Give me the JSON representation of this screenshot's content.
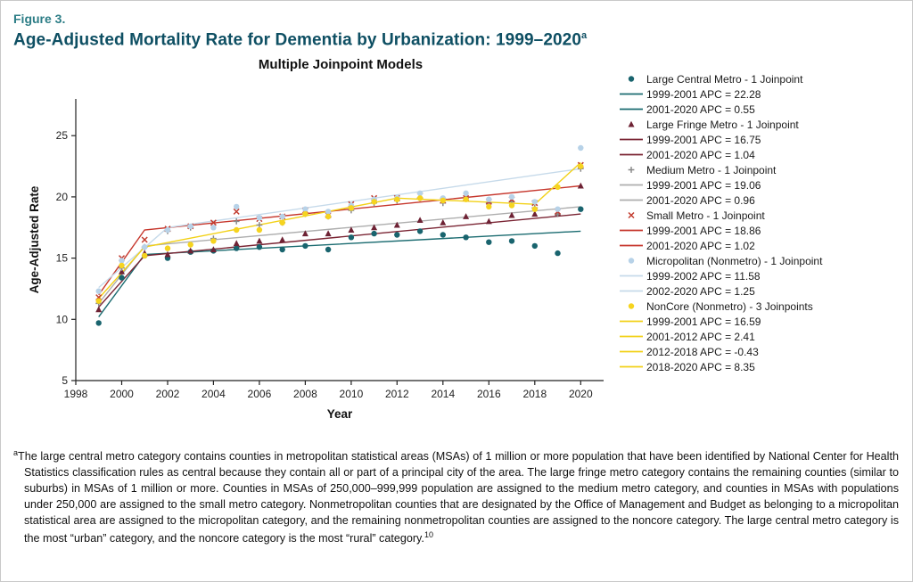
{
  "header": {
    "figure_label": "Figure 3.",
    "title": "Age-Adjusted Mortality Rate for Dementia by Urbanization: 1999–2020",
    "title_superscript": "a"
  },
  "chart_data": {
    "type": "scatter",
    "title": "Multiple Joinpoint Models",
    "xlabel": "Year",
    "ylabel": "Age-Adjusted Rate",
    "xlim": [
      1998,
      2021
    ],
    "ylim": [
      5,
      28
    ],
    "xticks": [
      1998,
      2000,
      2002,
      2004,
      2006,
      2008,
      2010,
      2012,
      2014,
      2016,
      2018,
      2020
    ],
    "yticks": [
      5,
      10,
      15,
      20,
      25
    ],
    "grid": false,
    "legend_position": "right",
    "years": [
      1999,
      2000,
      2001,
      2002,
      2003,
      2004,
      2005,
      2006,
      2007,
      2008,
      2009,
      2010,
      2011,
      2012,
      2013,
      2014,
      2015,
      2016,
      2017,
      2018,
      2019,
      2020
    ],
    "series": [
      {
        "name": "Large Central Metro - 1 Joinpoint",
        "marker": "circle",
        "icon_name": "large-central-metro-circle-icon",
        "color": "#19646e",
        "line_color": "#1a6b70",
        "apc_labels": [
          "1999-2001 APC = 22.28",
          "2001-2020 APC = 0.55"
        ],
        "values": [
          9.7,
          13.4,
          15.2,
          15.0,
          15.5,
          15.6,
          15.8,
          15.9,
          15.7,
          16.0,
          15.7,
          16.7,
          17.0,
          16.9,
          17.2,
          16.9,
          16.7,
          16.3,
          16.4,
          16.0,
          15.4,
          19.0
        ],
        "joinpoint_line": [
          [
            1999,
            10.2
          ],
          [
            2001,
            15.3
          ],
          [
            2020,
            17.2
          ]
        ]
      },
      {
        "name": "Large Fringe Metro - 1 Joinpoint",
        "marker": "triangle",
        "icon_name": "large-fringe-metro-triangle-icon",
        "color": "#6e2234",
        "line_color": "#7a2433",
        "apc_labels": [
          "1999-2001 APC = 16.75",
          "2001-2020 APC = 1.04"
        ],
        "values": [
          10.8,
          13.9,
          15.4,
          15.3,
          15.6,
          15.7,
          16.2,
          16.4,
          16.5,
          17.0,
          17.0,
          17.3,
          17.5,
          17.7,
          18.1,
          17.9,
          18.4,
          18.0,
          18.5,
          18.6,
          18.7,
          20.9
        ],
        "joinpoint_line": [
          [
            1999,
            11.0
          ],
          [
            2001,
            15.2
          ],
          [
            2020,
            18.6
          ]
        ]
      },
      {
        "name": "Medium Metro - 1 Joinpoint",
        "marker": "plus",
        "icon_name": "medium-metro-plus-icon",
        "color": "#8a8a8a",
        "line_color": "#aeaeae",
        "apc_labels": [
          "1999-2001 APC = 19.06",
          "2001-2020 APC = 0.96"
        ],
        "values": [
          11.3,
          14.2,
          15.9,
          17.2,
          17.5,
          16.6,
          18.0,
          17.7,
          17.9,
          18.6,
          18.4,
          18.9,
          19.5,
          19.7,
          19.9,
          19.5,
          19.9,
          19.5,
          19.6,
          19.1,
          18.6,
          22.3
        ],
        "joinpoint_line": [
          [
            1999,
            11.3
          ],
          [
            2001,
            16.0
          ],
          [
            2020,
            19.2
          ]
        ]
      },
      {
        "name": "Small Metro - 1 Joinpoint",
        "marker": "x",
        "icon_name": "small-metro-x-icon",
        "color": "#c23b2e",
        "line_color": "#c6362c",
        "apc_labels": [
          "1999-2001 APC = 18.86",
          "2001-2020 APC = 1.02"
        ],
        "values": [
          11.8,
          15.0,
          16.5,
          17.4,
          17.6,
          17.9,
          18.8,
          18.2,
          18.4,
          18.9,
          18.5,
          19.4,
          19.9,
          19.9,
          20.1,
          19.7,
          19.9,
          19.6,
          19.8,
          19.5,
          18.8,
          22.6
        ],
        "joinpoint_line": [
          [
            1999,
            12.0
          ],
          [
            2001,
            17.3
          ],
          [
            2020,
            20.9
          ]
        ]
      },
      {
        "name": "Micropolitan (Nonmetro) - 1 Joinpoint",
        "marker": "circle",
        "icon_name": "micropolitan-circle-icon",
        "color": "#b7d2e8",
        "line_color": "#c6daea",
        "apc_labels": [
          "1999-2002 APC = 11.58",
          "2002-2020 APC = 1.25"
        ],
        "values": [
          12.3,
          14.8,
          15.9,
          17.3,
          17.6,
          17.5,
          19.2,
          18.3,
          18.4,
          19.0,
          18.8,
          19.3,
          19.8,
          19.9,
          20.3,
          19.9,
          20.3,
          19.8,
          20.0,
          19.6,
          19.0,
          24.0
        ],
        "joinpoint_line": [
          [
            1999,
            12.6
          ],
          [
            2002,
            17.5
          ],
          [
            2020,
            22.3
          ]
        ]
      },
      {
        "name": "NonCore (Nonmetro) - 3 Joinpoints",
        "marker": "circle",
        "icon_name": "noncore-circle-icon",
        "color": "#f6d41f",
        "line_color": "#f2d117",
        "apc_labels": [
          "1999-2001 APC = 16.59",
          "2001-2012 APC = 2.41",
          "2012-2018 APC = -0.43",
          "2018-2020 APC = 8.35"
        ],
        "values": [
          11.5,
          14.4,
          15.2,
          15.8,
          16.1,
          16.4,
          17.3,
          17.3,
          17.9,
          18.6,
          18.4,
          19.1,
          19.6,
          19.8,
          19.9,
          19.7,
          19.8,
          19.2,
          19.3,
          19.0,
          20.8,
          22.5
        ],
        "joinpoint_line": [
          [
            1999,
            11.7
          ],
          [
            2001,
            15.9
          ],
          [
            2012,
            19.9
          ],
          [
            2018,
            19.4
          ],
          [
            2020,
            22.8
          ]
        ]
      }
    ]
  },
  "footnote": {
    "superscript": "a",
    "text": "The large central metro category contains counties in metropolitan statistical areas (MSAs) of 1 million or more population that have been identified by National Center for Health Statistics classification rules as central because they contain all or part of a principal city of the area. The large fringe metro category contains the remaining counties (similar to suburbs) in MSAs of 1 million or more. Counties in MSAs of 250,000–999,999 population are assigned to the medium metro category, and counties in MSAs with populations under 250,000 are assigned to the small metro category. Nonmetropolitan counties that are designated by the Office of Management and Budget as belonging to a micropolitan statistical area are assigned to the micropolitan category, and the remaining nonmetropolitan counties are assigned to the noncore category. The large central metro category is the most “urban” category, and the noncore category is the most “rural” category.",
    "trailing_superscript": "10"
  }
}
